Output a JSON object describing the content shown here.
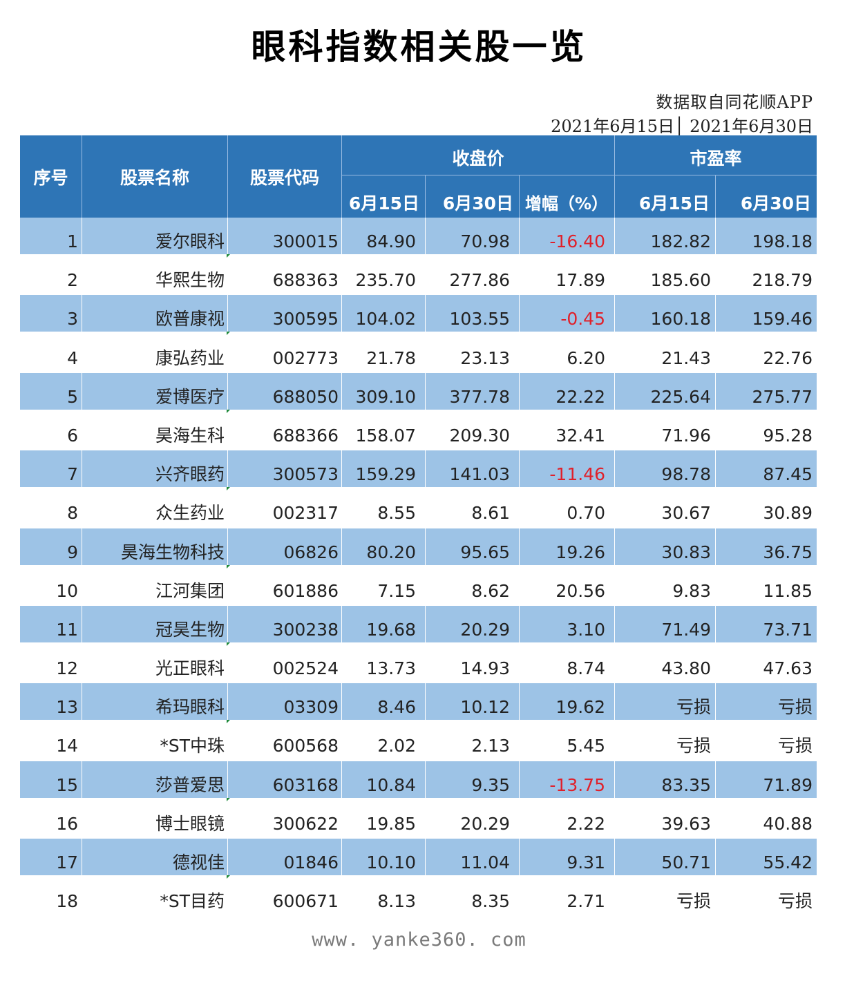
{
  "title": "眼科指数相关股一览",
  "source": "数据取自同花顺APP",
  "date_range": "2021年6月15日│ 2021年6月30日",
  "headers": {
    "seq": "序号",
    "name": "股票名称",
    "code": "股票代码",
    "close_group": "收盘价",
    "pe_group": "市盈率",
    "close_d1": "6月15日",
    "close_d2": "6月30日",
    "change": "增幅（%）",
    "pe_d1": "6月15日",
    "pe_d2": "6月30日"
  },
  "rows": [
    {
      "seq": "1",
      "name": "爱尔眼科",
      "code": "300015",
      "c1": "84.90",
      "c2": "70.98",
      "chg": "-16.40",
      "pe1": "182.82",
      "pe2": "198.18"
    },
    {
      "seq": "2",
      "name": "华熙生物",
      "code": "688363",
      "c1": "235.70",
      "c2": "277.86",
      "chg": "17.89",
      "pe1": "185.60",
      "pe2": "218.79"
    },
    {
      "seq": "3",
      "name": "欧普康视",
      "code": "300595",
      "c1": "104.02",
      "c2": "103.55",
      "chg": "-0.45",
      "pe1": "160.18",
      "pe2": "159.46"
    },
    {
      "seq": "4",
      "name": "康弘药业",
      "code": "002773",
      "c1": "21.78",
      "c2": "23.13",
      "chg": "6.20",
      "pe1": "21.43",
      "pe2": "22.76"
    },
    {
      "seq": "5",
      "name": "爱博医疗",
      "code": "688050",
      "c1": "309.10",
      "c2": "377.78",
      "chg": "22.22",
      "pe1": "225.64",
      "pe2": "275.77"
    },
    {
      "seq": "6",
      "name": "昊海生科",
      "code": "688366",
      "c1": "158.07",
      "c2": "209.30",
      "chg": "32.41",
      "pe1": "71.96",
      "pe2": "95.28"
    },
    {
      "seq": "7",
      "name": "兴齐眼药",
      "code": "300573",
      "c1": "159.29",
      "c2": "141.03",
      "chg": "-11.46",
      "pe1": "98.78",
      "pe2": "87.45"
    },
    {
      "seq": "8",
      "name": "众生药业",
      "code": "002317",
      "c1": "8.55",
      "c2": "8.61",
      "chg": "0.70",
      "pe1": "30.67",
      "pe2": "30.89"
    },
    {
      "seq": "9",
      "name": "昊海生物科技",
      "code": "06826",
      "c1": "80.20",
      "c2": "95.65",
      "chg": "19.26",
      "pe1": "30.83",
      "pe2": "36.75"
    },
    {
      "seq": "10",
      "name": "江河集团",
      "code": "601886",
      "c1": "7.15",
      "c2": "8.62",
      "chg": "20.56",
      "pe1": "9.83",
      "pe2": "11.85"
    },
    {
      "seq": "11",
      "name": "冠昊生物",
      "code": "300238",
      "c1": "19.68",
      "c2": "20.29",
      "chg": "3.10",
      "pe1": "71.49",
      "pe2": "73.71"
    },
    {
      "seq": "12",
      "name": "光正眼科",
      "code": "002524",
      "c1": "13.73",
      "c2": "14.93",
      "chg": "8.74",
      "pe1": "43.80",
      "pe2": "47.63"
    },
    {
      "seq": "13",
      "name": "希玛眼科",
      "code": "03309",
      "c1": "8.46",
      "c2": "10.12",
      "chg": "19.62",
      "pe1": "亏损",
      "pe2": "亏损"
    },
    {
      "seq": "14",
      "name": "*ST中珠",
      "code": "600568",
      "c1": "2.02",
      "c2": "2.13",
      "chg": "5.45",
      "pe1": "亏损",
      "pe2": "亏损"
    },
    {
      "seq": "15",
      "name": "莎普爱思",
      "code": "603168",
      "c1": "10.84",
      "c2": "9.35",
      "chg": "-13.75",
      "pe1": "83.35",
      "pe2": "71.89"
    },
    {
      "seq": "16",
      "name": "博士眼镜",
      "code": "300622",
      "c1": "19.85",
      "c2": "20.29",
      "chg": "2.22",
      "pe1": "39.63",
      "pe2": "40.88"
    },
    {
      "seq": "17",
      "name": "德视佳",
      "code": "01846",
      "c1": "10.10",
      "c2": "11.04",
      "chg": "9.31",
      "pe1": "50.71",
      "pe2": "55.42"
    },
    {
      "seq": "18",
      "name": "*ST目药",
      "code": "600671",
      "c1": "8.13",
      "c2": "8.35",
      "chg": "2.71",
      "pe1": "亏损",
      "pe2": "亏损"
    }
  ],
  "colors": {
    "header_bg": "#2e75b6",
    "row_shade": "#9dc3e6",
    "negative": "#e0202a"
  },
  "footer": "www. yanke360. com"
}
